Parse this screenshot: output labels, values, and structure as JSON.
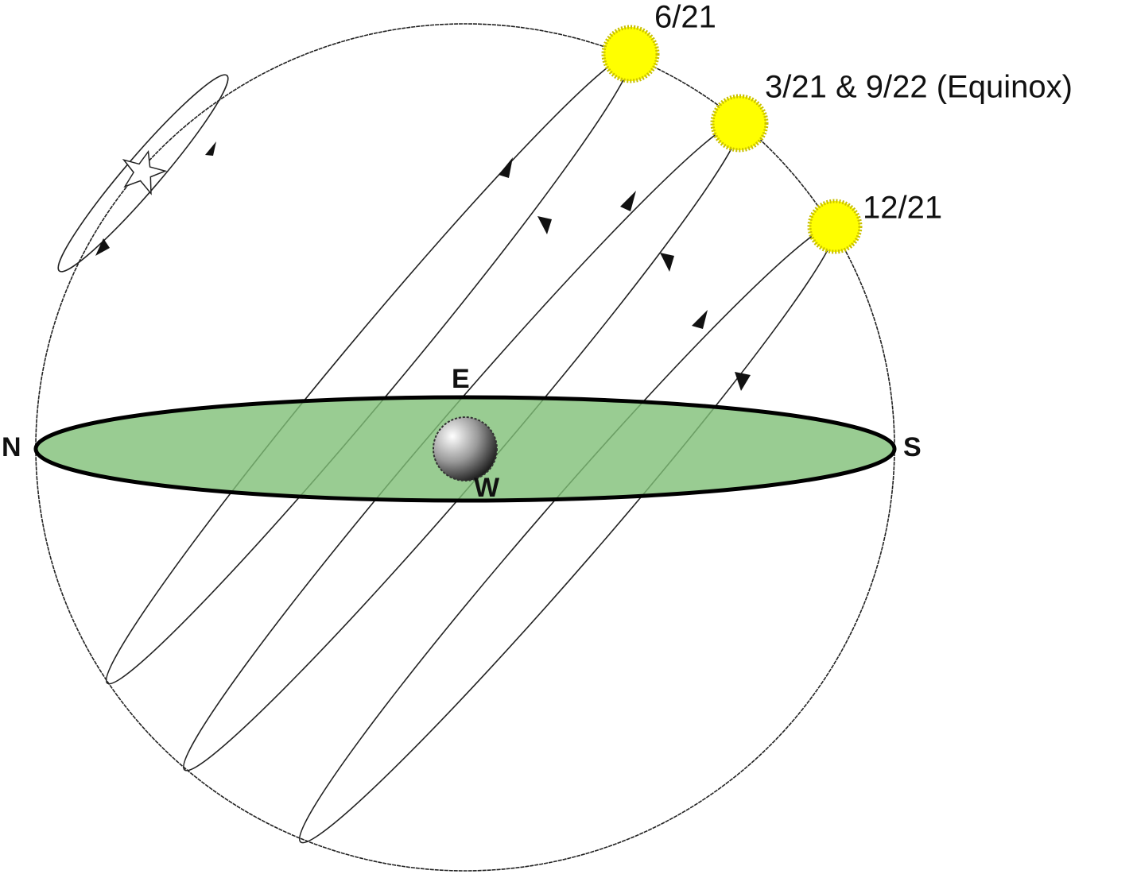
{
  "sun_labels": [
    "6/21",
    "3/21 & 9/22 (Equinox)",
    "12/21"
  ],
  "directions": {
    "north": "N",
    "south": "S",
    "east": "E",
    "west": "W"
  }
}
